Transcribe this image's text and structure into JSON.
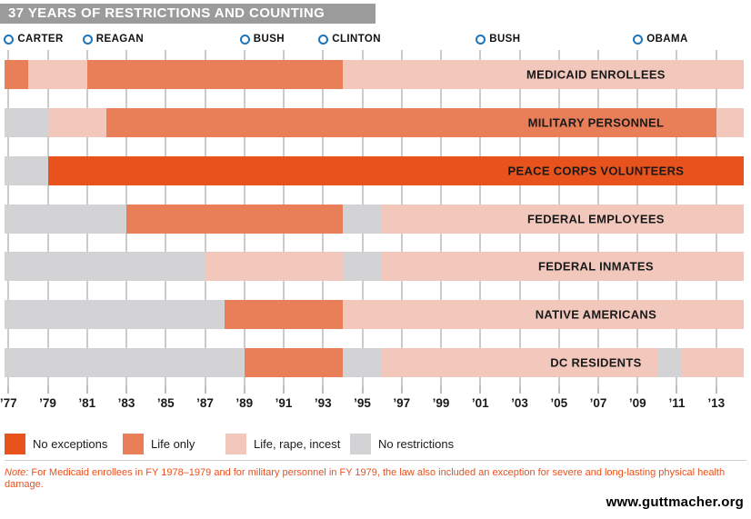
{
  "title": "37 YEARS OF RESTRICTIONS AND COUNTING",
  "note": {
    "prefix": "Note:",
    "text": " For Medicaid enrollees in FY 1978–1979 and for military personnel in FY 1979, the law also included an exception for severe and long-lasting physical health damage."
  },
  "footer": {
    "url_label": "www.guttmacher.org"
  },
  "chart_data": {
    "type": "bar",
    "subtype": "horizontal-timeline-segments",
    "title": "37 YEARS OF RESTRICTIONS AND COUNTING",
    "x_domain": [
      1976.8,
      2014.4
    ],
    "grid": true,
    "legend_position": "bottom",
    "colors": {
      "none": "#e8521d",
      "life": "#e97f58",
      "lri": "#f2c7bc",
      "nores": "#d3d3d5",
      "president_ring": "#1c75bc",
      "title_bar": "#9b9b9b",
      "note_text": "#e8511d"
    },
    "category_labels": {
      "none": "No exceptions",
      "life": "Life only",
      "lri": "Life, rape, incest",
      "nores": "No restrictions"
    },
    "legend_order": [
      "none",
      "life",
      "lri",
      "nores"
    ],
    "legend_offsets": [
      0,
      130,
      243,
      380
    ],
    "presidents": [
      {
        "name": "CARTER",
        "year": 1977
      },
      {
        "name": "REAGAN",
        "year": 1981
      },
      {
        "name": "BUSH",
        "year": 1989
      },
      {
        "name": "CLINTON",
        "year": 1993
      },
      {
        "name": "BUSH",
        "year": 2001
      },
      {
        "name": "OBAMA",
        "year": 2009
      }
    ],
    "x_ticks": [
      {
        "year": 1977,
        "label": "’77"
      },
      {
        "year": 1979,
        "label": "’79"
      },
      {
        "year": 1981,
        "label": "’81"
      },
      {
        "year": 1983,
        "label": "’83"
      },
      {
        "year": 1985,
        "label": "’85"
      },
      {
        "year": 1987,
        "label": "’87"
      },
      {
        "year": 1989,
        "label": "’89"
      },
      {
        "year": 1991,
        "label": "’91"
      },
      {
        "year": 1993,
        "label": "’93"
      },
      {
        "year": 1995,
        "label": "’95"
      },
      {
        "year": 1997,
        "label": "’97"
      },
      {
        "year": 1999,
        "label": "’99"
      },
      {
        "year": 2001,
        "label": "’01"
      },
      {
        "year": 2003,
        "label": "’03"
      },
      {
        "year": 2005,
        "label": "’05"
      },
      {
        "year": 2007,
        "label": "’07"
      },
      {
        "year": 2009,
        "label": "’09"
      },
      {
        "year": 2011,
        "label": "’11"
      },
      {
        "year": 2013,
        "label": "’13"
      }
    ],
    "rows": [
      {
        "label": "MEDICAID ENROLLEES",
        "segments": [
          {
            "start": 1976.8,
            "end": 1978,
            "category": "life"
          },
          {
            "start": 1978,
            "end": 1981,
            "category": "lri"
          },
          {
            "start": 1981,
            "end": 1994,
            "category": "life"
          },
          {
            "start": 1994,
            "end": 2014.4,
            "category": "lri"
          }
        ]
      },
      {
        "label": "MILITARY PERSONNEL",
        "segments": [
          {
            "start": 1976.8,
            "end": 1979,
            "category": "nores"
          },
          {
            "start": 1979,
            "end": 1982,
            "category": "lri"
          },
          {
            "start": 1982,
            "end": 2013,
            "category": "life"
          },
          {
            "start": 2013,
            "end": 2014.4,
            "category": "lri"
          }
        ]
      },
      {
        "label": "PEACE CORPS VOLUNTEERS",
        "segments": [
          {
            "start": 1976.8,
            "end": 1979,
            "category": "nores"
          },
          {
            "start": 1979,
            "end": 2014.4,
            "category": "none"
          }
        ]
      },
      {
        "label": "FEDERAL EMPLOYEES",
        "segments": [
          {
            "start": 1976.8,
            "end": 1983,
            "category": "nores"
          },
          {
            "start": 1983,
            "end": 1994,
            "category": "life"
          },
          {
            "start": 1994,
            "end": 1996,
            "category": "nores"
          },
          {
            "start": 1996,
            "end": 2014.4,
            "category": "lri"
          }
        ]
      },
      {
        "label": "FEDERAL INMATES",
        "segments": [
          {
            "start": 1976.8,
            "end": 1987,
            "category": "nores"
          },
          {
            "start": 1987,
            "end": 1994,
            "category": "lri"
          },
          {
            "start": 1994,
            "end": 1996,
            "category": "nores"
          },
          {
            "start": 1996,
            "end": 2014.4,
            "category": "lri"
          }
        ]
      },
      {
        "label": "NATIVE AMERICANS",
        "segments": [
          {
            "start": 1976.8,
            "end": 1988,
            "category": "nores"
          },
          {
            "start": 1988,
            "end": 1994,
            "category": "life"
          },
          {
            "start": 1994,
            "end": 2014.4,
            "category": "lri"
          }
        ]
      },
      {
        "label": "DC RESIDENTS",
        "segments": [
          {
            "start": 1976.8,
            "end": 1989,
            "category": "nores"
          },
          {
            "start": 1989,
            "end": 1994,
            "category": "life"
          },
          {
            "start": 1994,
            "end": 1996,
            "category": "nores"
          },
          {
            "start": 1996,
            "end": 2010,
            "category": "lri"
          },
          {
            "start": 2010,
            "end": 2011.25,
            "category": "nores"
          },
          {
            "start": 2011.25,
            "end": 2014.4,
            "category": "lri"
          }
        ]
      }
    ]
  }
}
